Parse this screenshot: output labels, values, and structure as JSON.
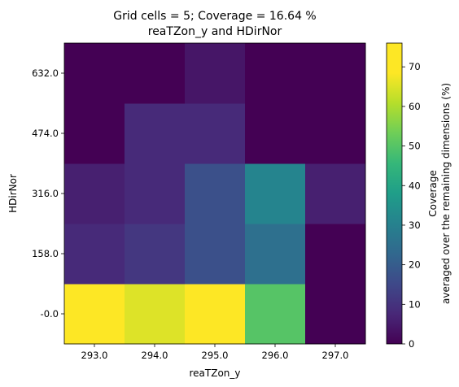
{
  "chart_data": {
    "type": "heatmap",
    "title": "Grid cells = 5; Coverage = 16.64 %",
    "subtitle": "reaTZon_y and HDirNor",
    "xlabel": "reaTZon_y",
    "ylabel": "HDirNor",
    "x_ticks": [
      "293.0",
      "294.0",
      "295.0",
      "296.0",
      "297.0"
    ],
    "y_ticks": [
      "-0.0",
      "158.0",
      "316.0",
      "474.0",
      "632.0"
    ],
    "values": [
      [
        76,
        65,
        70,
        50,
        0
      ],
      [
        8,
        11,
        17,
        25,
        0
      ],
      [
        6,
        8,
        17,
        31,
        6
      ],
      [
        0,
        8,
        8,
        0,
        0
      ],
      [
        0,
        0,
        4,
        0,
        0
      ]
    ],
    "colorbar": {
      "label_line1": "Coverage",
      "label_line2": "averaged over the remaining dimensions (%)",
      "min": 0,
      "max": 76,
      "ticks": [
        "0",
        "10",
        "20",
        "30",
        "40",
        "50",
        "60",
        "70"
      ],
      "tick_values": [
        0,
        10,
        20,
        30,
        40,
        50,
        60,
        70
      ],
      "colormap": "viridis"
    }
  }
}
